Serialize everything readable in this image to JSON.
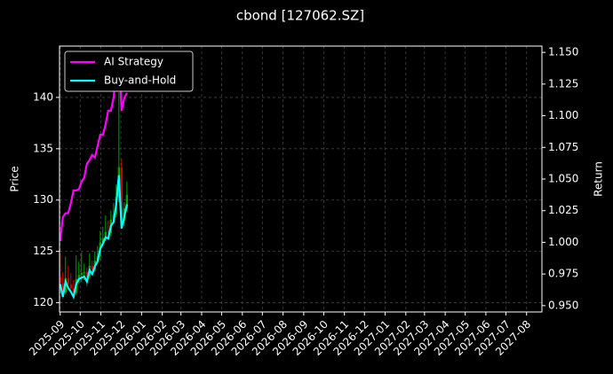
{
  "chart_data": {
    "type": "candlestick",
    "title": "cbond [127062.SZ]",
    "ylabel": "Price",
    "y2label": "Return",
    "x": [
      0,
      4,
      8,
      12,
      16,
      20,
      24,
      28,
      32,
      36,
      40,
      44,
      48,
      52,
      56,
      60,
      64,
      68,
      72,
      76,
      80,
      84,
      88,
      92,
      96,
      100
    ],
    "open": [
      122.5,
      121.9,
      121.0,
      122.4,
      121.8,
      121.4,
      121.0,
      122.3,
      122.7,
      122.9,
      123.0,
      122.5,
      123.6,
      123.2,
      124.1,
      124.5,
      125.9,
      126.3,
      126.9,
      126.8,
      128.1,
      128.6,
      130.3,
      133.2,
      128.0,
      129.2
    ],
    "high": [
      124.8,
      123.0,
      124.5,
      123.6,
      122.9,
      122.2,
      124.6,
      124.0,
      124.9,
      123.8,
      123.4,
      124.8,
      124.1,
      125.0,
      125.5,
      127.0,
      127.4,
      128.5,
      128.0,
      129.0,
      129.7,
      131.5,
      140.5,
      134.0,
      129.8,
      131.8
    ],
    "low": [
      121.0,
      120.4,
      120.8,
      121.3,
      120.9,
      120.5,
      120.8,
      121.8,
      122.0,
      122.2,
      121.6,
      122.3,
      122.6,
      123.0,
      123.8,
      124.2,
      125.5,
      126.0,
      126.1,
      126.5,
      127.8,
      128.3,
      129.8,
      127.2,
      127.5,
      128.9
    ],
    "close": [
      121.9,
      121.0,
      122.4,
      121.8,
      121.4,
      121.0,
      122.3,
      122.7,
      122.9,
      123.0,
      122.5,
      123.6,
      123.2,
      124.1,
      124.5,
      125.9,
      126.3,
      126.9,
      126.8,
      128.1,
      128.6,
      130.3,
      133.2,
      128.0,
      129.2,
      130.5
    ],
    "up_color": "#00a000",
    "down_color": "#d00000",
    "series": [
      {
        "name": "AI Strategy",
        "color": "#ff00ff",
        "axis": "y2",
        "values": [
          1.001,
          1.02,
          1.023,
          1.023,
          1.031,
          1.041,
          1.041,
          1.042,
          1.048,
          1.051,
          1.062,
          1.065,
          1.069,
          1.067,
          1.076,
          1.085,
          1.085,
          1.093,
          1.104,
          1.104,
          1.114,
          1.135,
          1.149,
          1.104,
          1.114,
          1.118
        ]
      },
      {
        "name": "Buy-and-Hold",
        "color": "#00ffff",
        "axis": "y2",
        "values": [
          0.967,
          0.957,
          0.969,
          0.964,
          0.961,
          0.957,
          0.967,
          0.971,
          0.972,
          0.973,
          0.969,
          0.978,
          0.975,
          0.981,
          0.985,
          0.995,
          0.999,
          1.004,
          1.003,
          1.013,
          1.016,
          1.03,
          1.053,
          1.011,
          1.02,
          1.03
        ]
      }
    ],
    "xlim": [
      -1,
      722
    ],
    "xticks": [
      {
        "value": 0,
        "label": "2025-09"
      },
      {
        "value": 30,
        "label": "2025-10"
      },
      {
        "value": 61,
        "label": "2025-11"
      },
      {
        "value": 91,
        "label": "2025-12"
      },
      {
        "value": 122,
        "label": "2026-01"
      },
      {
        "value": 153,
        "label": "2026-02"
      },
      {
        "value": 181,
        "label": "2026-03"
      },
      {
        "value": 212,
        "label": "2026-04"
      },
      {
        "value": 242,
        "label": "2026-05"
      },
      {
        "value": 273,
        "label": "2026-06"
      },
      {
        "value": 303,
        "label": "2026-07"
      },
      {
        "value": 334,
        "label": "2026-08"
      },
      {
        "value": 365,
        "label": "2026-09"
      },
      {
        "value": 395,
        "label": "2026-10"
      },
      {
        "value": 426,
        "label": "2026-11"
      },
      {
        "value": 456,
        "label": "2026-12"
      },
      {
        "value": 487,
        "label": "2027-01"
      },
      {
        "value": 518,
        "label": "2027-02"
      },
      {
        "value": 546,
        "label": "2027-03"
      },
      {
        "value": 577,
        "label": "2027-04"
      },
      {
        "value": 607,
        "label": "2027-05"
      },
      {
        "value": 638,
        "label": "2027-06"
      },
      {
        "value": 668,
        "label": "2027-07"
      },
      {
        "value": 699,
        "label": "2027-08"
      }
    ],
    "ylim": [
      119.1,
      145
    ],
    "yticks": [
      120,
      125,
      130,
      135,
      140
    ],
    "y2lim": [
      0.945,
      1.155
    ],
    "y2ticks": [
      {
        "value": 0.95,
        "label": "0.950"
      },
      {
        "value": 0.975,
        "label": "0.975"
      },
      {
        "value": 1.0,
        "label": "1.000"
      },
      {
        "value": 1.025,
        "label": "1.025"
      },
      {
        "value": 1.05,
        "label": "1.050"
      },
      {
        "value": 1.075,
        "label": "1.075"
      },
      {
        "value": 1.1,
        "label": "1.100"
      },
      {
        "value": 1.125,
        "label": "1.125"
      },
      {
        "value": 1.15,
        "label": "1.150"
      }
    ],
    "grid": true,
    "legend": "upper left"
  }
}
